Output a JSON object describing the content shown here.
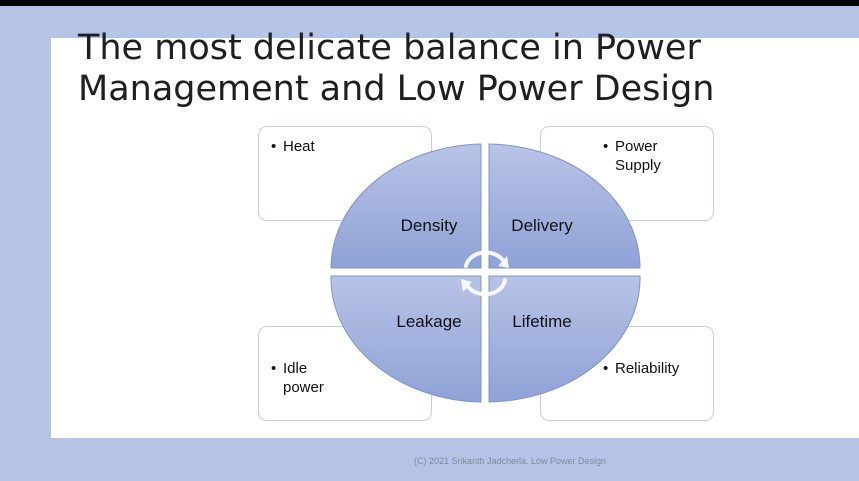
{
  "slide": {
    "title_line1": "The most delicate balance in Power",
    "title_line2": "Management and Low Power Design",
    "footer": "(C) 2021 Srikanth Jadcherla. Low Power Design"
  },
  "diagram": {
    "quadrants": [
      {
        "label": "Density"
      },
      {
        "label": "Delivery"
      },
      {
        "label": "Leakage"
      },
      {
        "label": "Lifetime"
      }
    ],
    "notes": {
      "heat": [
        "Heat"
      ],
      "power_supply": [
        "Power",
        "Supply"
      ],
      "idle_power": [
        "Idle",
        "power"
      ],
      "reliability": [
        "Reliability"
      ]
    },
    "colors": {
      "fill_top": "#8fa2d6",
      "fill_bottom": "#b8c3e6",
      "outline": "#7f95cf"
    },
    "center_icon": "cycle-arrows-icon"
  }
}
